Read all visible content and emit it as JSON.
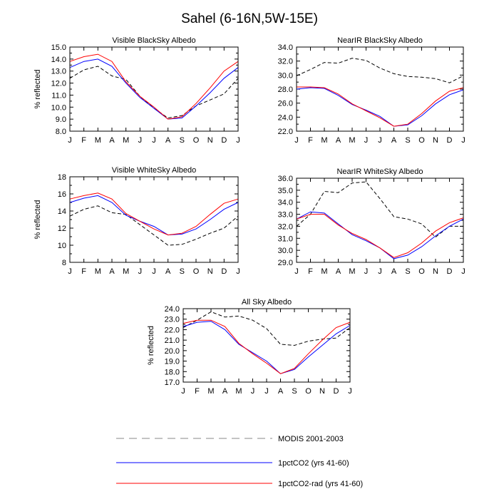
{
  "figure": {
    "title": "Sahel (6-16N,5W-15E)"
  },
  "legend": [
    {
      "key": "modis",
      "label": "MODIS 2001-2003"
    },
    {
      "key": "co2",
      "label": "1pctCO2 (yrs 41-60)"
    },
    {
      "key": "rad",
      "label": "1pctCO2-rad (yrs 41-60)"
    }
  ],
  "chart_data": [
    {
      "type": "line",
      "title": "Visible BlackSky Albedo",
      "ylabel": "% reflected",
      "ylim": [
        8,
        15
      ],
      "yticks": [
        "8.0",
        "9.0",
        "10.0",
        "11.0",
        "12.0",
        "13.0",
        "14.0",
        "15.0"
      ],
      "xticks": [
        "J",
        "F",
        "M",
        "A",
        "M",
        "J",
        "J",
        "A",
        "S",
        "O",
        "N",
        "D",
        "J"
      ],
      "series": [
        {
          "key": "modis",
          "name": "MODIS 2001-2003",
          "color": "#000000",
          "dash": true,
          "values": [
            12.4,
            13.1,
            13.4,
            12.6,
            12.3,
            10.9,
            9.9,
            9.1,
            9.3,
            10.1,
            10.6,
            11.1,
            12.4
          ]
        },
        {
          "key": "co2",
          "name": "1pctCO2 (yrs 41-60)",
          "color": "#0000ff",
          "dash": false,
          "values": [
            13.3,
            13.8,
            14.0,
            13.4,
            12.0,
            10.8,
            9.9,
            9.0,
            9.1,
            10.1,
            11.2,
            12.4,
            13.3
          ]
        },
        {
          "key": "rad",
          "name": "1pctCO2-rad (yrs 41-60)",
          "color": "#ff0000",
          "dash": false,
          "values": [
            13.8,
            14.2,
            14.4,
            13.8,
            12.1,
            10.9,
            10.0,
            9.0,
            9.2,
            10.3,
            11.6,
            13.0,
            13.8
          ]
        }
      ]
    },
    {
      "type": "line",
      "title": "NearIR BlackSky Albedo",
      "ylabel": "",
      "ylim": [
        22,
        34
      ],
      "yticks": [
        "22.0",
        "24.0",
        "26.0",
        "28.0",
        "30.0",
        "32.0",
        "34.0"
      ],
      "xticks": [
        "J",
        "F",
        "M",
        "A",
        "M",
        "J",
        "J",
        "A",
        "S",
        "O",
        "N",
        "D",
        "J"
      ],
      "series": [
        {
          "key": "modis",
          "name": "MODIS 2001-2003",
          "color": "#000000",
          "dash": true,
          "values": [
            29.9,
            30.8,
            31.8,
            31.7,
            32.4,
            32.1,
            31.0,
            30.2,
            29.8,
            29.7,
            29.5,
            28.9,
            29.9
          ]
        },
        {
          "key": "co2",
          "name": "1pctCO2 (yrs 41-60)",
          "color": "#0000ff",
          "dash": false,
          "values": [
            28.0,
            28.2,
            28.1,
            27.1,
            25.8,
            25.0,
            24.1,
            22.7,
            22.9,
            24.2,
            25.9,
            27.2,
            27.9
          ]
        },
        {
          "key": "rad",
          "name": "1pctCO2-rad (yrs 41-60)",
          "color": "#ff0000",
          "dash": false,
          "values": [
            28.3,
            28.3,
            28.2,
            27.3,
            25.9,
            24.9,
            23.9,
            22.7,
            23.0,
            24.5,
            26.3,
            27.7,
            28.2
          ]
        }
      ]
    },
    {
      "type": "line",
      "title": "Visible WhiteSky Albedo",
      "ylabel": "% reflected",
      "ylim": [
        8,
        18
      ],
      "yticks": [
        "8",
        "10",
        "12",
        "14",
        "16",
        "18"
      ],
      "xticks": [
        "J",
        "F",
        "M",
        "A",
        "M",
        "J",
        "J",
        "A",
        "S",
        "O",
        "N",
        "D",
        "J"
      ],
      "series": [
        {
          "key": "modis",
          "name": "MODIS 2001-2003",
          "color": "#000000",
          "dash": true,
          "values": [
            13.4,
            14.2,
            14.6,
            13.8,
            13.6,
            12.4,
            11.2,
            10.0,
            10.1,
            10.7,
            11.4,
            12.0,
            13.4
          ]
        },
        {
          "key": "co2",
          "name": "1pctCO2 (yrs 41-60)",
          "color": "#0000ff",
          "dash": false,
          "values": [
            15.0,
            15.5,
            15.8,
            15.0,
            13.5,
            12.8,
            12.2,
            11.2,
            11.3,
            11.9,
            13.0,
            14.2,
            15.0
          ]
        },
        {
          "key": "rad",
          "name": "1pctCO2-rad (yrs 41-60)",
          "color": "#ff0000",
          "dash": false,
          "values": [
            15.4,
            15.8,
            16.1,
            15.4,
            13.7,
            12.8,
            11.9,
            11.2,
            11.4,
            12.2,
            13.6,
            14.9,
            15.4
          ]
        }
      ]
    },
    {
      "type": "line",
      "title": "NearIR WhiteSky Albedo",
      "ylabel": "",
      "ylim": [
        29,
        36
      ],
      "yticks": [
        "29.0",
        "30.0",
        "31.0",
        "32.0",
        "33.0",
        "34.0",
        "35.0",
        "36.0"
      ],
      "xticks": [
        "J",
        "F",
        "M",
        "A",
        "M",
        "J",
        "J",
        "A",
        "S",
        "O",
        "N",
        "D",
        "J"
      ],
      "series": [
        {
          "key": "modis",
          "name": "MODIS 2001-2003",
          "color": "#000000",
          "dash": true,
          "values": [
            32.0,
            33.0,
            34.9,
            34.8,
            35.6,
            35.7,
            34.3,
            32.8,
            32.6,
            32.2,
            31.1,
            32.0,
            32.0
          ]
        },
        {
          "key": "co2",
          "name": "1pctCO2 (yrs 41-60)",
          "color": "#0000ff",
          "dash": false,
          "values": [
            32.6,
            33.2,
            33.1,
            32.2,
            31.3,
            30.8,
            30.2,
            29.3,
            29.6,
            30.3,
            31.2,
            32.0,
            32.6
          ]
        },
        {
          "key": "rad",
          "name": "1pctCO2-rad (yrs 41-60)",
          "color": "#ff0000",
          "dash": false,
          "values": [
            32.6,
            33.0,
            33.0,
            32.1,
            31.4,
            30.9,
            30.2,
            29.4,
            29.8,
            30.6,
            31.6,
            32.3,
            32.7
          ]
        }
      ]
    },
    {
      "type": "line",
      "title": "All Sky Albedo",
      "ylabel": "% reflected",
      "ylim": [
        17,
        24
      ],
      "yticks": [
        "17.0",
        "18.0",
        "19.0",
        "20.0",
        "21.0",
        "22.0",
        "23.0",
        "24.0"
      ],
      "xticks": [
        "J",
        "F",
        "M",
        "A",
        "M",
        "J",
        "J",
        "A",
        "S",
        "O",
        "N",
        "D",
        "J"
      ],
      "series": [
        {
          "key": "modis",
          "name": "MODIS 2001-2003",
          "color": "#000000",
          "dash": true,
          "values": [
            22.2,
            22.9,
            23.7,
            23.2,
            23.3,
            22.9,
            22.1,
            20.6,
            20.5,
            20.9,
            21.1,
            21.2,
            22.2
          ]
        },
        {
          "key": "co2",
          "name": "1pctCO2 (yrs 41-60)",
          "color": "#0000ff",
          "dash": false,
          "values": [
            22.3,
            22.7,
            22.8,
            22.0,
            20.6,
            19.8,
            19.0,
            17.8,
            18.2,
            19.4,
            20.5,
            21.6,
            22.4
          ]
        },
        {
          "key": "rad",
          "name": "1pctCO2-rad (yrs 41-60)",
          "color": "#ff0000",
          "dash": false,
          "values": [
            22.6,
            22.9,
            22.9,
            22.3,
            20.7,
            19.7,
            18.8,
            17.8,
            18.3,
            19.7,
            21.0,
            22.2,
            22.7
          ]
        }
      ]
    }
  ]
}
